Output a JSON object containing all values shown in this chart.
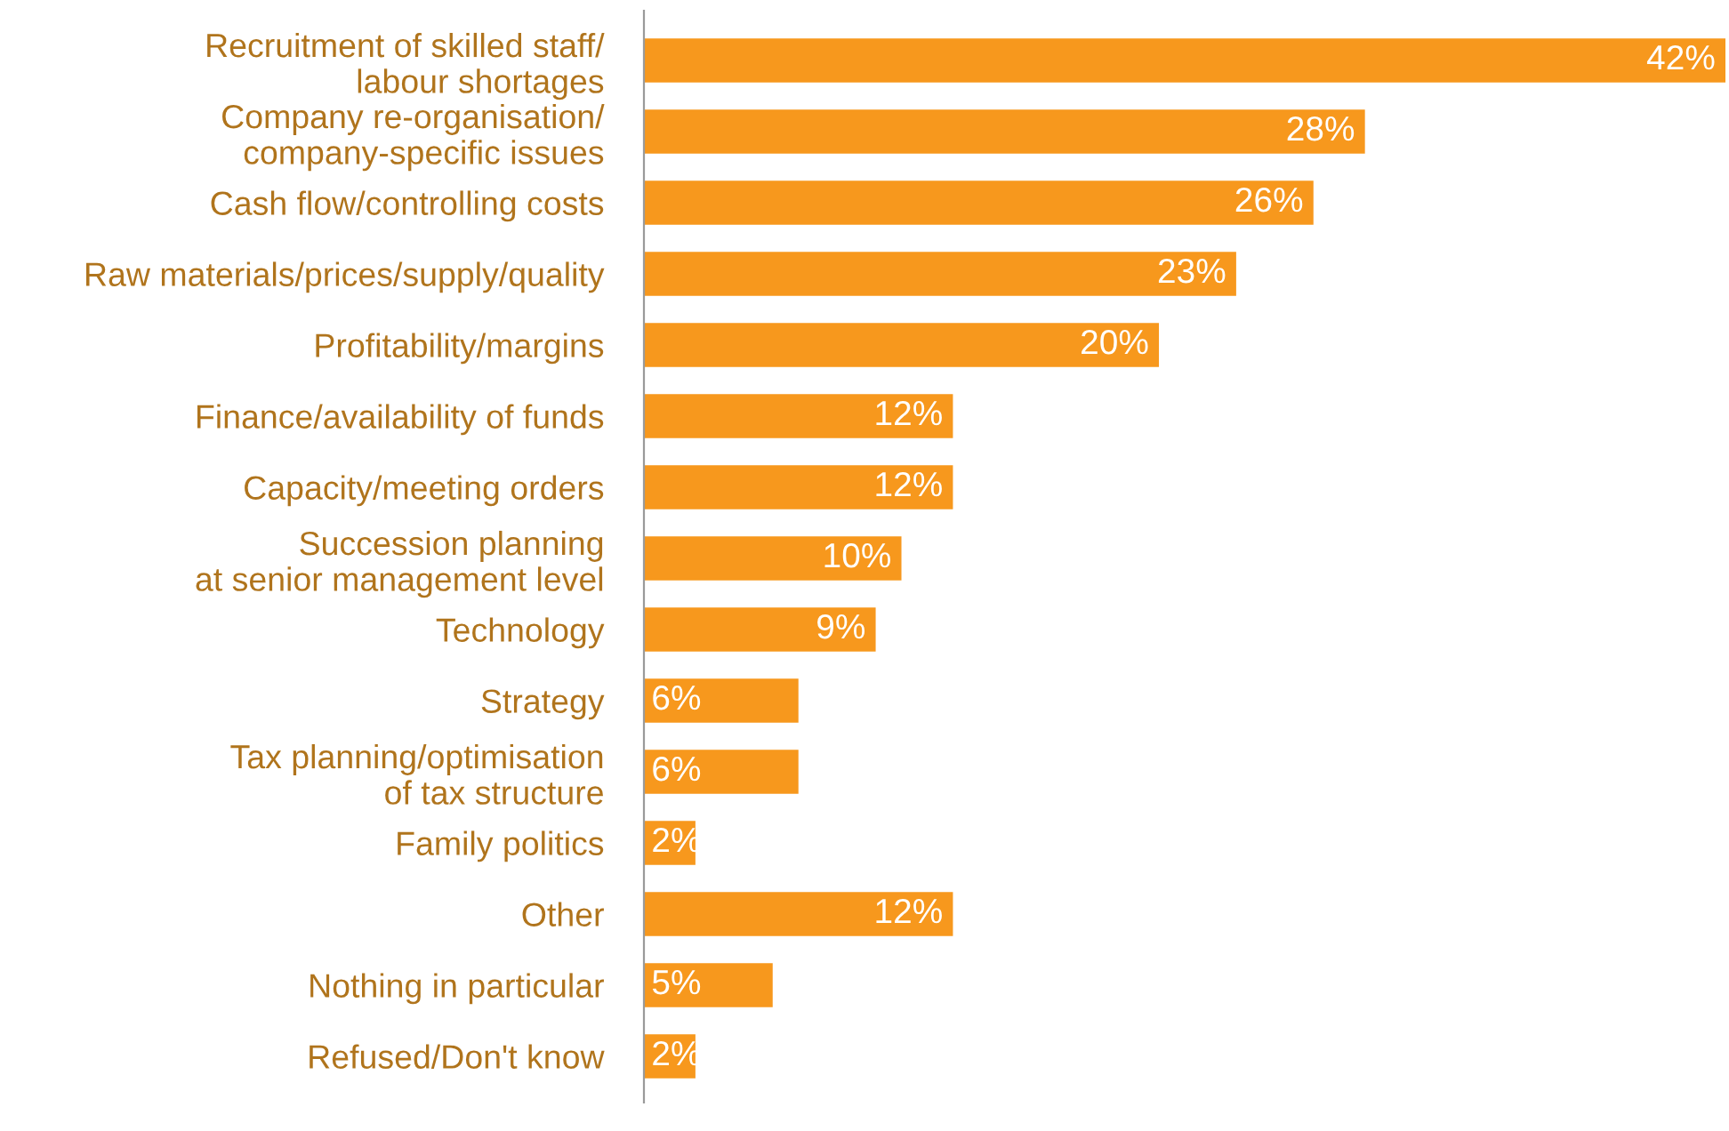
{
  "chart_data": {
    "type": "bar",
    "orientation": "horizontal",
    "color": "#f7981d",
    "categories": [
      "Recruitment of skilled staff/\nlabour shortages",
      "Company re-organisation/\ncompany-specific issues",
      "Cash flow/controlling costs",
      "Raw materials/prices/supply/quality",
      "Profitability/margins",
      "Finance/availability of funds",
      "Capacity/meeting orders",
      "Succession planning\nat senior management level",
      "Technology",
      "Strategy",
      "Tax planning/optimisation\nof tax structure",
      "Family politics",
      "Other",
      "Nothing in particular",
      "Refused/Don't know"
    ],
    "values": [
      42,
      28,
      26,
      23,
      20,
      12,
      12,
      10,
      9,
      6,
      6,
      2,
      12,
      5,
      2
    ],
    "value_labels": [
      "42%",
      "28%",
      "26%",
      "23%",
      "20%",
      "12%",
      "12%",
      "10%",
      "9%",
      "6%",
      "6%",
      "2%",
      "12%",
      "5%",
      "2%"
    ],
    "grid": false,
    "legend": false
  }
}
